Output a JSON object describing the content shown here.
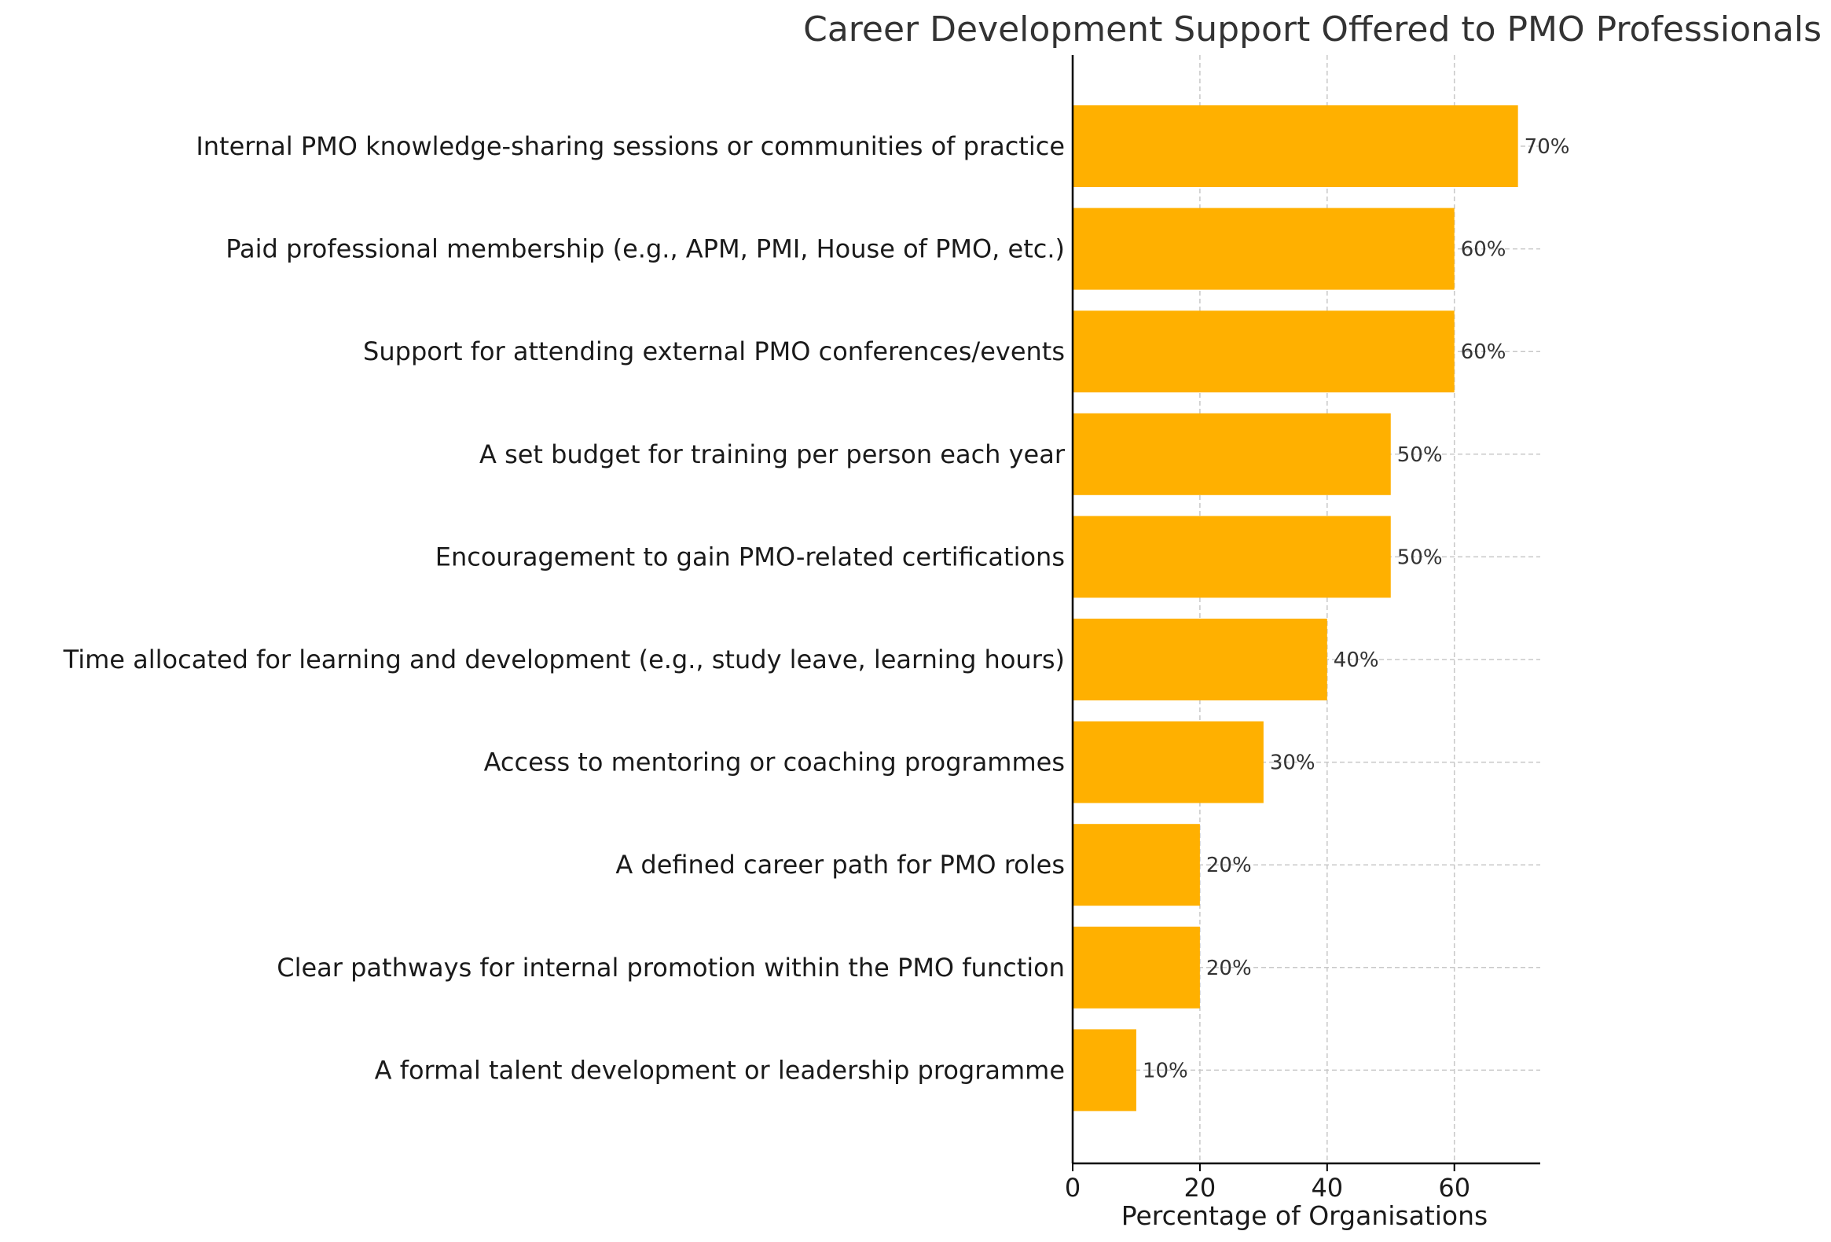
{
  "chart_data": {
    "type": "bar",
    "orientation": "horizontal",
    "title": "Career Development Support Offered to PMO Professionals",
    "xlabel": "Percentage of Organisations",
    "ylabel": "",
    "xlim": [
      0,
      73.5
    ],
    "xticks": [
      0,
      20,
      40,
      60
    ],
    "grid": true,
    "bar_color": "#FFB000",
    "categories": [
      "Internal PMO knowledge-sharing sessions or communities of practice",
      "Paid professional membership (e.g., APM, PMI, House of PMO, etc.)",
      "Support for attending external PMO conferences/events",
      "A set budget for training per person each year",
      "Encouragement to gain PMO-related certifications",
      "Time allocated for learning and development (e.g., study leave, learning hours)",
      "Access to mentoring or coaching programmes",
      "A defined career path for PMO roles",
      "Clear pathways for internal promotion within the PMO function",
      "A formal talent development or leadership programme"
    ],
    "values": [
      70,
      60,
      60,
      50,
      50,
      40,
      30,
      20,
      20,
      10
    ],
    "data_labels": [
      "70%",
      "60%",
      "60%",
      "50%",
      "50%",
      "40%",
      "30%",
      "20%",
      "20%",
      "10%"
    ]
  }
}
